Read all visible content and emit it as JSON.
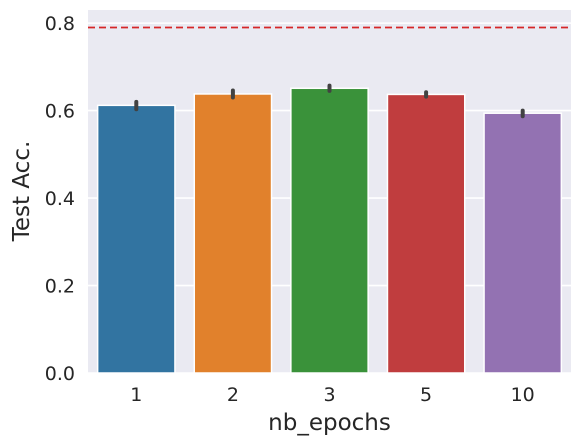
{
  "chart_data": {
    "type": "bar",
    "xlabel": "nb_epochs",
    "ylabel": "Test Acc.",
    "categories": [
      "1",
      "2",
      "3",
      "5",
      "10"
    ],
    "values": [
      0.612,
      0.638,
      0.651,
      0.637,
      0.594
    ],
    "error_low": [
      0.603,
      0.63,
      0.645,
      0.632,
      0.587
    ],
    "error_high": [
      0.62,
      0.646,
      0.657,
      0.642,
      0.6
    ],
    "bar_colors": [
      "#3274a1",
      "#e1812c",
      "#3a923a",
      "#c03d3e",
      "#9372b2"
    ],
    "error_color": "#424242",
    "reference_line": {
      "y": 0.79,
      "style": "dashed",
      "color": "#d62728"
    },
    "ylim": [
      0,
      0.83
    ],
    "yticks": [
      "0.0",
      "0.2",
      "0.4",
      "0.6",
      "0.8"
    ],
    "grid": true,
    "background": "#eaeaf2"
  }
}
